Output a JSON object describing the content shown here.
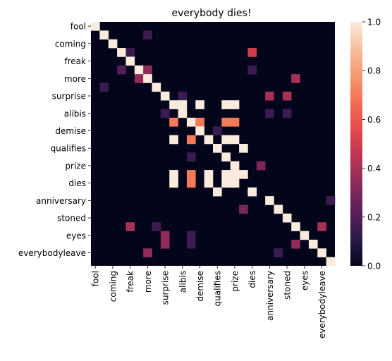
{
  "chart_data": {
    "type": "heatmap",
    "title": "everybody dies!",
    "xlabel": "",
    "ylabel": "",
    "words": [
      "fool",
      "",
      "coming",
      "",
      "freak",
      "",
      "more",
      "",
      "surprise",
      "",
      "alibis",
      "",
      "demise",
      "",
      "qualifies",
      "",
      "prize",
      "",
      "dies",
      "",
      "anniversary",
      "",
      "stoned",
      "",
      "eyes",
      "",
      "everybodyleave",
      ""
    ],
    "row_labels": [
      "fool",
      "coming",
      "freak",
      "more",
      "surprise",
      "alibis",
      "demise",
      "qualifies",
      "prize",
      "dies",
      "anniversary",
      "stoned",
      "eyes",
      "everybodyleave"
    ],
    "col_labels": [
      "fool",
      "coming",
      "freak",
      "more",
      "surprise",
      "alibis",
      "demise",
      "qualifies",
      "prize",
      "dies",
      "anniversary",
      "stoned",
      "eyes",
      "everybodyleave"
    ],
    "cells": [
      {
        "r": 0,
        "c": 0,
        "v": 1.0
      },
      {
        "r": 1,
        "c": 1,
        "v": 1.0
      },
      {
        "r": 1,
        "c": 6,
        "v": 0.15
      },
      {
        "r": 2,
        "c": 2,
        "v": 1.0
      },
      {
        "r": 3,
        "c": 3,
        "v": 1.0
      },
      {
        "r": 3,
        "c": 4,
        "v": 0.15
      },
      {
        "r": 3,
        "c": 18,
        "v": 0.5
      },
      {
        "r": 4,
        "c": 4,
        "v": 1.0
      },
      {
        "r": 5,
        "c": 3,
        "v": 0.2
      },
      {
        "r": 5,
        "c": 5,
        "v": 1.0
      },
      {
        "r": 5,
        "c": 6,
        "v": 0.35
      },
      {
        "r": 5,
        "c": 18,
        "v": 0.15
      },
      {
        "r": 6,
        "c": 5,
        "v": 0.35
      },
      {
        "r": 6,
        "c": 6,
        "v": 1.0
      },
      {
        "r": 6,
        "c": 23,
        "v": 0.4
      },
      {
        "r": 7,
        "c": 1,
        "v": 0.15
      },
      {
        "r": 7,
        "c": 7,
        "v": 1.0
      },
      {
        "r": 8,
        "c": 8,
        "v": 1.0
      },
      {
        "r": 8,
        "c": 10,
        "v": 0.15
      },
      {
        "r": 8,
        "c": 20,
        "v": 0.4
      },
      {
        "r": 8,
        "c": 22,
        "v": 0.4
      },
      {
        "r": 9,
        "c": 9,
        "v": 1.0
      },
      {
        "r": 9,
        "c": 10,
        "v": 1.0
      },
      {
        "r": 9,
        "c": 12,
        "v": 1.0
      },
      {
        "r": 9,
        "c": 15,
        "v": 1.0
      },
      {
        "r": 9,
        "c": 16,
        "v": 1.0
      },
      {
        "r": 10,
        "c": 8,
        "v": 0.15
      },
      {
        "r": 10,
        "c": 10,
        "v": 1.0
      },
      {
        "r": 10,
        "c": 20,
        "v": 0.15
      },
      {
        "r": 10,
        "c": 22,
        "v": 0.15
      },
      {
        "r": 11,
        "c": 9,
        "v": 0.7
      },
      {
        "r": 11,
        "c": 11,
        "v": 1.0
      },
      {
        "r": 11,
        "c": 12,
        "v": 0.7
      },
      {
        "r": 11,
        "c": 15,
        "v": 0.7
      },
      {
        "r": 11,
        "c": 16,
        "v": 0.7
      },
      {
        "r": 12,
        "c": 12,
        "v": 1.0
      },
      {
        "r": 12,
        "c": 14,
        "v": 0.15
      },
      {
        "r": 13,
        "c": 9,
        "v": 1.0
      },
      {
        "r": 13,
        "c": 11,
        "v": 0.7
      },
      {
        "r": 13,
        "c": 13,
        "v": 1.0
      },
      {
        "r": 13,
        "c": 15,
        "v": 1.0
      },
      {
        "r": 13,
        "c": 16,
        "v": 1.0
      },
      {
        "r": 14,
        "c": 14,
        "v": 1.0
      },
      {
        "r": 14,
        "c": 17,
        "v": 1.0
      },
      {
        "r": 15,
        "c": 11,
        "v": 0.15
      },
      {
        "r": 15,
        "c": 15,
        "v": 1.0
      },
      {
        "r": 16,
        "c": 16,
        "v": 1.0
      },
      {
        "r": 16,
        "c": 19,
        "v": 0.3
      },
      {
        "r": 17,
        "c": 9,
        "v": 1.0
      },
      {
        "r": 17,
        "c": 11,
        "v": 0.7
      },
      {
        "r": 17,
        "c": 13,
        "v": 1.0
      },
      {
        "r": 17,
        "c": 15,
        "v": 1.0
      },
      {
        "r": 17,
        "c": 16,
        "v": 1.0
      },
      {
        "r": 17,
        "c": 17,
        "v": 1.0
      },
      {
        "r": 18,
        "c": 9,
        "v": 1.0
      },
      {
        "r": 18,
        "c": 11,
        "v": 0.7
      },
      {
        "r": 18,
        "c": 13,
        "v": 1.0
      },
      {
        "r": 18,
        "c": 15,
        "v": 1.0
      },
      {
        "r": 18,
        "c": 16,
        "v": 1.0
      },
      {
        "r": 19,
        "c": 14,
        "v": 1.0
      },
      {
        "r": 19,
        "c": 18,
        "v": 1.0
      },
      {
        "r": 20,
        "c": 20,
        "v": 1.0
      },
      {
        "r": 20,
        "c": 27,
        "v": 0.15
      },
      {
        "r": 21,
        "c": 17,
        "v": 0.3
      },
      {
        "r": 21,
        "c": 21,
        "v": 1.0
      },
      {
        "r": 22,
        "c": 22,
        "v": 1.0
      },
      {
        "r": 23,
        "c": 4,
        "v": 0.4
      },
      {
        "r": 23,
        "c": 7,
        "v": 0.15
      },
      {
        "r": 23,
        "c": 23,
        "v": 1.0
      },
      {
        "r": 23,
        "c": 26,
        "v": 0.4
      },
      {
        "r": 24,
        "c": 8,
        "v": 0.35
      },
      {
        "r": 24,
        "c": 11,
        "v": 0.15
      },
      {
        "r": 24,
        "c": 24,
        "v": 1.0
      },
      {
        "r": 25,
        "c": 8,
        "v": 0.35
      },
      {
        "r": 25,
        "c": 11,
        "v": 0.15
      },
      {
        "r": 25,
        "c": 23,
        "v": 0.35
      },
      {
        "r": 25,
        "c": 25,
        "v": 1.0
      },
      {
        "r": 26,
        "c": 6,
        "v": 0.35
      },
      {
        "r": 26,
        "c": 21,
        "v": 0.15
      },
      {
        "r": 26,
        "c": 26,
        "v": 1.0
      },
      {
        "r": 27,
        "c": 27,
        "v": 1.0
      }
    ],
    "colorbar": {
      "range": [
        0.0,
        1.0
      ],
      "ticks": [
        "0.0",
        "0.2",
        "0.4",
        "0.6",
        "0.8",
        "1.0"
      ]
    },
    "colormap": [
      "#03051a",
      "#2c1a4b",
      "#5a1f59",
      "#8a2a5b",
      "#bc3353",
      "#e3494a",
      "#f26d51",
      "#f6986e",
      "#f8bf9c",
      "#faebdd"
    ]
  }
}
